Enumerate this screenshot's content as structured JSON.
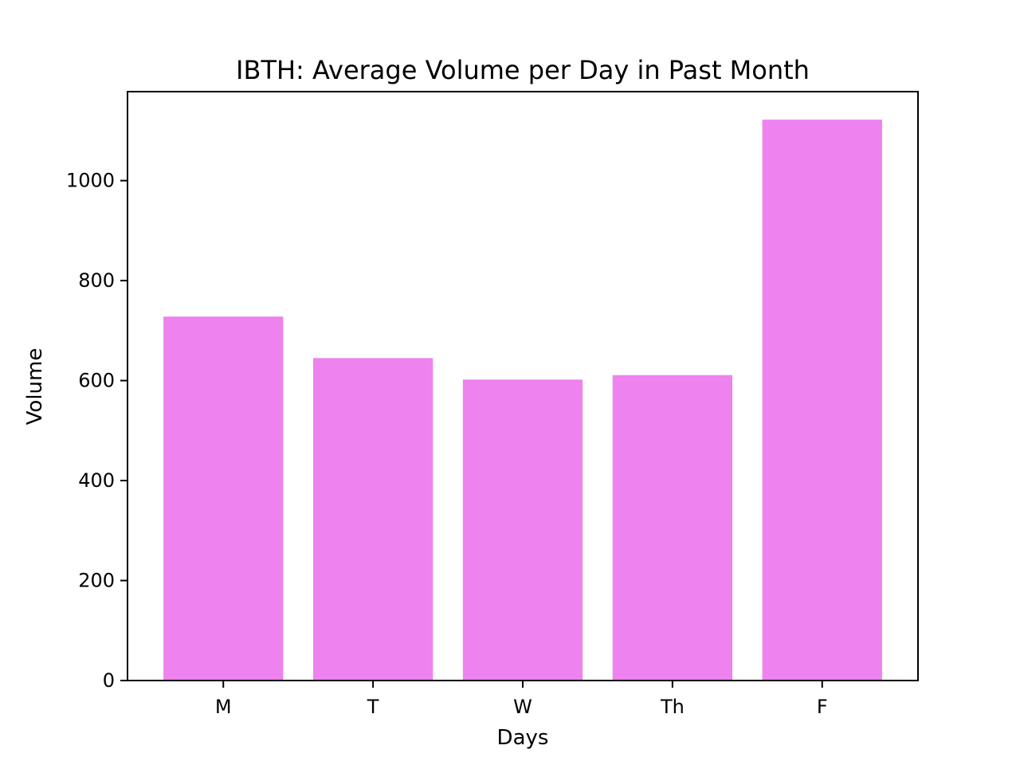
{
  "chart_data": {
    "type": "bar",
    "title": "IBTH: Average Volume per Day in Past Month",
    "xlabel": "Days",
    "ylabel": "Volume",
    "categories": [
      "M",
      "T",
      "W",
      "Th",
      "F"
    ],
    "values": [
      728,
      645,
      602,
      611,
      1122
    ],
    "ylim": [
      0,
      1178
    ],
    "yticks": [
      0,
      200,
      400,
      600,
      800,
      1000
    ],
    "ytick_labels": [
      "0",
      "200",
      "400",
      "600",
      "800",
      "1000"
    ],
    "bar_color": "#ee82ee",
    "grid": false,
    "legend": "none"
  }
}
